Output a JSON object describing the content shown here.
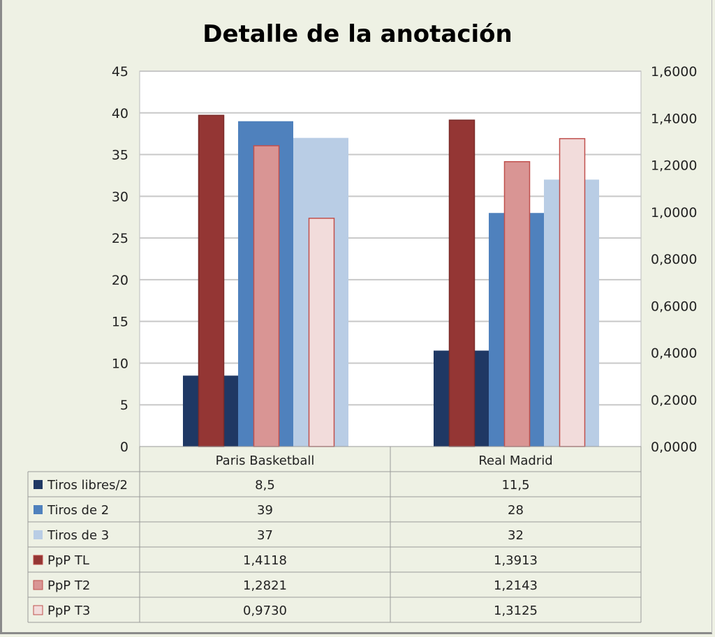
{
  "chart_data": {
    "type": "bar",
    "title": "Detalle de la anotación",
    "categories": [
      "Paris Basketball",
      "Real Madrid"
    ],
    "primary_axis": {
      "side": "left",
      "ylim": [
        0,
        45
      ],
      "ticks": [
        "0",
        "5",
        "10",
        "15",
        "20",
        "25",
        "30",
        "35",
        "40",
        "45"
      ]
    },
    "secondary_axis": {
      "side": "right",
      "ylim": [
        0,
        1.6
      ],
      "ticks": [
        "0,0000",
        "0,2000",
        "0,4000",
        "0,6000",
        "0,8000",
        "1,0000",
        "1,2000",
        "1,4000",
        "1,6000"
      ]
    },
    "grid": true,
    "legend": "data-table",
    "series": [
      {
        "name": "Tiros libres/2",
        "axis": "primary",
        "color": "#1f3864",
        "values": [
          8.5,
          11.5
        ],
        "labels": [
          "8,5",
          "11,5"
        ]
      },
      {
        "name": "Tiros de 2",
        "axis": "primary",
        "color": "#4f81bd",
        "values": [
          39,
          28
        ],
        "labels": [
          "39",
          "28"
        ]
      },
      {
        "name": "Tiros de 3",
        "axis": "primary",
        "color": "#b9cde5",
        "values": [
          37,
          32
        ],
        "labels": [
          "37",
          "32"
        ]
      },
      {
        "name": "PpP TL",
        "axis": "secondary",
        "color": "#943634",
        "values": [
          1.4118,
          1.3913
        ],
        "labels": [
          "1,4118",
          "1,3913"
        ]
      },
      {
        "name": "PpP T2",
        "axis": "secondary",
        "color": "#d99594",
        "values": [
          1.2821,
          1.2143
        ],
        "labels": [
          "1,2821",
          "1,2143"
        ]
      },
      {
        "name": "PpP T3",
        "axis": "secondary",
        "color": "#f2dcdb",
        "values": [
          0.973,
          1.3125
        ],
        "labels": [
          "0,9730",
          "1,3125"
        ]
      }
    ]
  }
}
